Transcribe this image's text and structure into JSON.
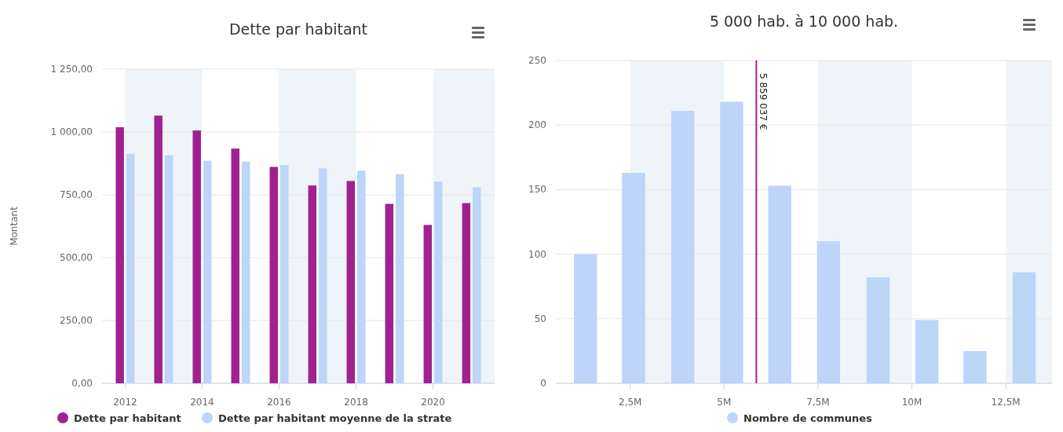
{
  "chart_data": [
    {
      "type": "bar",
      "title": "Dette par habitant",
      "ylabel": "Montant",
      "x": [
        2012,
        2013,
        2014,
        2015,
        2016,
        2017,
        2018,
        2019,
        2020,
        2021
      ],
      "series": [
        {
          "name": "Dette par habitant",
          "color": "#a0228f",
          "values": [
            1019,
            1065,
            1006,
            934,
            861,
            787,
            805,
            714,
            630,
            717
          ]
        },
        {
          "name": "Dette par habitant moyenne de la strate",
          "color": "#bcd5f8",
          "values": [
            913,
            907,
            886,
            882,
            868,
            855,
            846,
            832,
            802,
            780
          ]
        }
      ],
      "xlim": [
        2011.4,
        2021.6
      ],
      "xticks": [
        2012,
        2014,
        2016,
        2018,
        2020
      ],
      "ylim": [
        0,
        1250
      ],
      "yticks": [
        {
          "value": 0,
          "label": "0,00"
        },
        {
          "value": 250,
          "label": "250,00"
        },
        {
          "value": 500,
          "label": "500,00"
        },
        {
          "value": 750,
          "label": "750,00"
        },
        {
          "value": 1000,
          "label": "1 000,00"
        },
        {
          "value": 1250,
          "label": "1 250,00"
        }
      ],
      "grid": "y",
      "legend": "bottom",
      "bands": [
        {
          "axis": "x",
          "from": 2012,
          "to": 2014,
          "color": "#eef4f8"
        },
        {
          "axis": "x",
          "from": 2016,
          "to": 2018,
          "color": "#eef4f8"
        },
        {
          "axis": "x",
          "from": 2020,
          "to": 2021.6,
          "color": "#eef4f8"
        }
      ]
    },
    {
      "type": "bar",
      "title": "5 000 hab. à 10 000 hab.",
      "x": [
        1310000,
        2590000,
        3900000,
        5200000,
        6480000,
        7780000,
        9100000,
        10400000,
        11680000,
        12990000
      ],
      "series": [
        {
          "name": "Nombre de communes",
          "color": "#bcd5f8",
          "values": [
            100,
            163,
            211,
            218,
            153,
            110,
            82,
            49,
            25,
            86
          ]
        }
      ],
      "xlim": [
        520000,
        13730000
      ],
      "xticks": [
        {
          "value": 2500000,
          "label": "2,5M"
        },
        {
          "value": 5000000,
          "label": "5M"
        },
        {
          "value": 7500000,
          "label": "7,5M"
        },
        {
          "value": 10000000,
          "label": "10M"
        },
        {
          "value": 12500000,
          "label": "12,5M"
        }
      ],
      "ylim": [
        0,
        250
      ],
      "yticks": [
        0,
        50,
        100,
        150,
        200,
        250
      ],
      "grid": "y",
      "legend": "bottom",
      "bands": [
        {
          "axis": "x",
          "from": 2500000,
          "to": 5000000,
          "color": "#eef4f8"
        },
        {
          "axis": "x",
          "from": 7500000,
          "to": 10000000,
          "color": "#eef4f8"
        },
        {
          "axis": "x",
          "from": 12500000,
          "to": 13730000,
          "color": "#eef4f8"
        }
      ],
      "ref_lines": [
        {
          "axis": "x",
          "value": 5859037,
          "label": "5 859 037 €",
          "color": "#a0228f"
        }
      ]
    }
  ]
}
